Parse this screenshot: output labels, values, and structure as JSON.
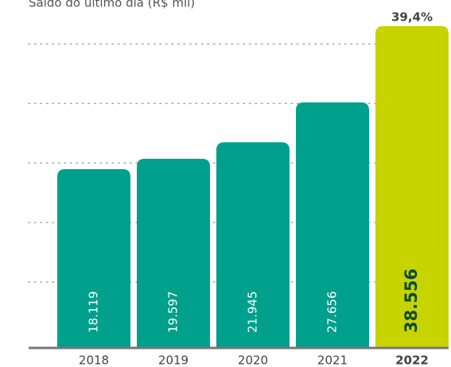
{
  "chart_data": {
    "type": "bar",
    "title": "Saldo do último dia (R$ mil)",
    "categories": [
      "2018",
      "2019",
      "2020",
      "2021",
      "2022"
    ],
    "values": [
      18119,
      19597,
      21945,
      27656,
      38556
    ],
    "value_labels": [
      "18.119",
      "19.597",
      "21.945",
      "27.656",
      "38.556"
    ],
    "colors": [
      "#00a08c",
      "#00a08c",
      "#00a08c",
      "#00a08c",
      "#c8d400"
    ],
    "annotation": "39,4%",
    "ylim": [
      -7300,
      40000
    ],
    "yticks": [
      2000,
      10500,
      19000,
      27500,
      36000
    ],
    "grid": true
  }
}
